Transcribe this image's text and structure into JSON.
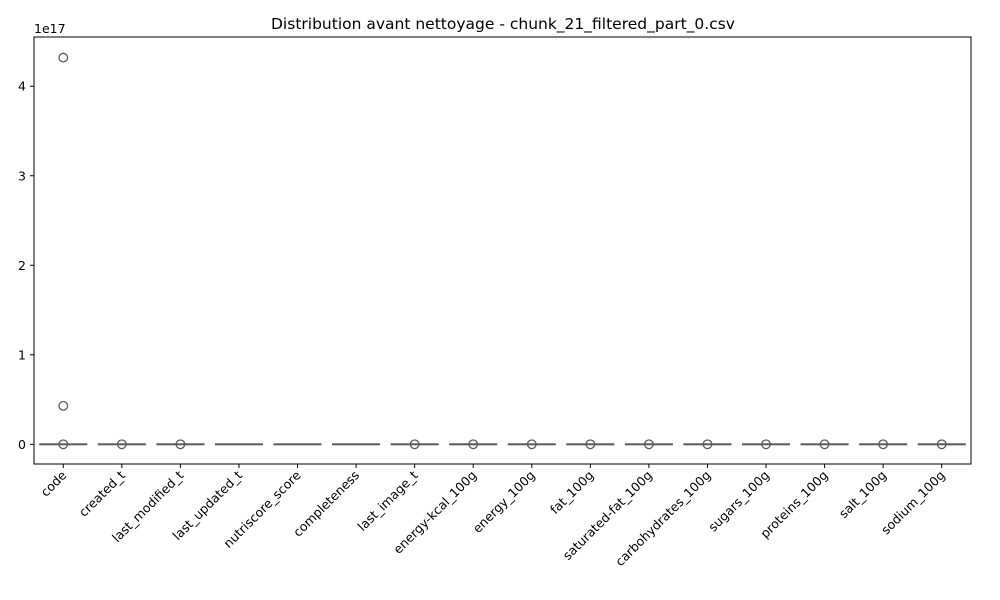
{
  "chart_data": {
    "type": "box",
    "title": "Distribution avant nettoyage - chunk_21_filtered_part_0.csv",
    "xlabel": "",
    "ylabel": "",
    "y_scale_label": "1e17",
    "ylim": [
      -0.22,
      4.55
    ],
    "y_ticks": [
      0,
      1,
      2,
      3,
      4
    ],
    "y_tick_labels": [
      "0",
      "1",
      "2",
      "3",
      "4"
    ],
    "grid": false,
    "legend": "none",
    "colors": {
      "box_edge": "#5a5a5a",
      "box_fill": "#4c72b0",
      "flier": "#5a5a5a"
    },
    "categories": [
      "code",
      "created_t",
      "last_modified_t",
      "last_updated_t",
      "nutriscore_score",
      "completeness",
      "last_image_t",
      "energy-kcal_100g",
      "energy_100g",
      "fat_100g",
      "saturated-fat_100g",
      "carbohydrates_100g",
      "sugars_100g",
      "proteins_100g",
      "salt_100g",
      "sodium_100g"
    ],
    "boxes": [
      {
        "category": "code",
        "q1": 0,
        "median": 0,
        "q3": 0,
        "whisker_low": 0,
        "whisker_high": 0,
        "fliers": [
          4.32,
          0.43,
          0.0
        ]
      },
      {
        "category": "created_t",
        "q1": 0,
        "median": 0,
        "q3": 0,
        "whisker_low": 0,
        "whisker_high": 0,
        "fliers": [
          0.0
        ]
      },
      {
        "category": "last_modified_t",
        "q1": 0,
        "median": 0,
        "q3": 0,
        "whisker_low": 0,
        "whisker_high": 0,
        "fliers": [
          0.0
        ]
      },
      {
        "category": "last_updated_t",
        "q1": 0,
        "median": 0,
        "q3": 0,
        "whisker_low": 0,
        "whisker_high": 0,
        "fliers": []
      },
      {
        "category": "nutriscore_score",
        "q1": 0,
        "median": 0,
        "q3": 0,
        "whisker_low": 0,
        "whisker_high": 0,
        "fliers": []
      },
      {
        "category": "completeness",
        "q1": 0,
        "median": 0,
        "q3": 0,
        "whisker_low": 0,
        "whisker_high": 0,
        "fliers": []
      },
      {
        "category": "last_image_t",
        "q1": 0,
        "median": 0,
        "q3": 0,
        "whisker_low": 0,
        "whisker_high": 0,
        "fliers": [
          0.0
        ]
      },
      {
        "category": "energy-kcal_100g",
        "q1": 0,
        "median": 0,
        "q3": 0,
        "whisker_low": 0,
        "whisker_high": 0,
        "fliers": [
          0.0
        ]
      },
      {
        "category": "energy_100g",
        "q1": 0,
        "median": 0,
        "q3": 0,
        "whisker_low": 0,
        "whisker_high": 0,
        "fliers": [
          0.0
        ]
      },
      {
        "category": "fat_100g",
        "q1": 0,
        "median": 0,
        "q3": 0,
        "whisker_low": 0,
        "whisker_high": 0,
        "fliers": [
          0.0
        ]
      },
      {
        "category": "saturated-fat_100g",
        "q1": 0,
        "median": 0,
        "q3": 0,
        "whisker_low": 0,
        "whisker_high": 0,
        "fliers": [
          0.0
        ]
      },
      {
        "category": "carbohydrates_100g",
        "q1": 0,
        "median": 0,
        "q3": 0,
        "whisker_low": 0,
        "whisker_high": 0,
        "fliers": [
          0.0
        ]
      },
      {
        "category": "sugars_100g",
        "q1": 0,
        "median": 0,
        "q3": 0,
        "whisker_low": 0,
        "whisker_high": 0,
        "fliers": [
          0.0
        ]
      },
      {
        "category": "proteins_100g",
        "q1": 0,
        "median": 0,
        "q3": 0,
        "whisker_low": 0,
        "whisker_high": 0,
        "fliers": [
          0.0
        ]
      },
      {
        "category": "salt_100g",
        "q1": 0,
        "median": 0,
        "q3": 0,
        "whisker_low": 0,
        "whisker_high": 0,
        "fliers": [
          0.0
        ]
      },
      {
        "category": "sodium_100g",
        "q1": 0,
        "median": 0,
        "q3": 0,
        "whisker_low": 0,
        "whisker_high": 0,
        "fliers": [
          0.0
        ]
      }
    ]
  }
}
